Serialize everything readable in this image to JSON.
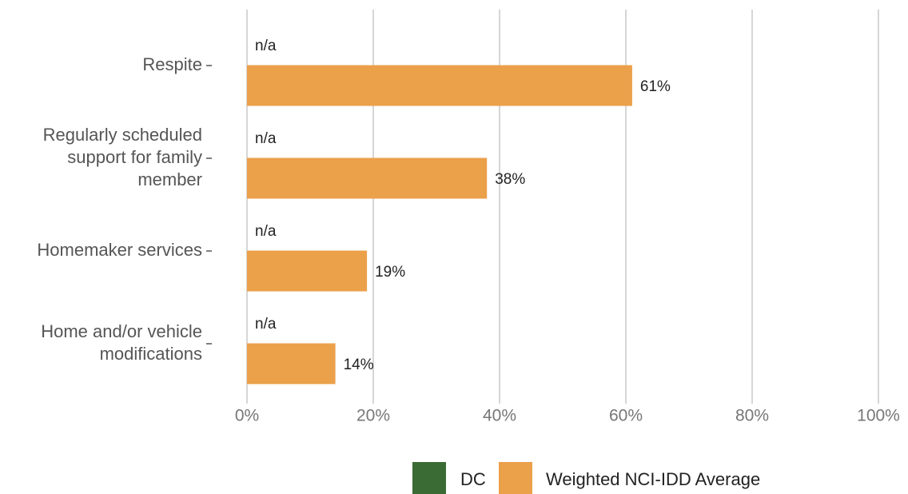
{
  "chart_data": {
    "type": "hbar",
    "categories": [
      "Respite",
      "Regularly scheduled\nsupport for family\nmember",
      "Homemaker services",
      "Home and/or vehicle\nmodifications"
    ],
    "series": [
      {
        "name": "DC",
        "color": "#3a6b35",
        "values": [
          null,
          null,
          null,
          null
        ],
        "value_labels": [
          "n/a",
          "n/a",
          "n/a",
          "n/a"
        ]
      },
      {
        "name": "Weighted NCI-IDD Average",
        "color": "#eba04a",
        "values": [
          61,
          38,
          19,
          14
        ],
        "value_labels": [
          "61%",
          "38%",
          "19%",
          "14%"
        ]
      }
    ],
    "xlim": [
      0,
      100
    ],
    "xticks": [
      {
        "value": 0,
        "label": "0%"
      },
      {
        "value": 20,
        "label": "20%"
      },
      {
        "value": 40,
        "label": "40%"
      },
      {
        "value": 60,
        "label": "60%"
      },
      {
        "value": 80,
        "label": "80%"
      },
      {
        "value": 100,
        "label": "100%"
      }
    ],
    "grid": true
  }
}
